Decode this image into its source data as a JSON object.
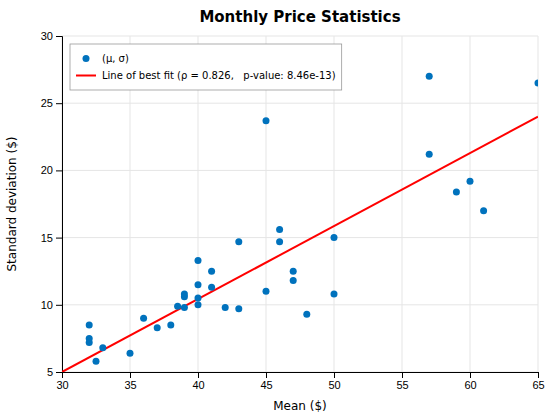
{
  "chart_data": {
    "type": "scatter",
    "title": "Monthly Price Statistics",
    "xlabel": "Mean ($)",
    "ylabel": "Standard deviation ($)",
    "xlim": [
      30,
      65
    ],
    "ylim": [
      5,
      30
    ],
    "xticks": [
      30,
      35,
      40,
      45,
      50,
      55,
      60,
      65
    ],
    "yticks": [
      5,
      10,
      15,
      20,
      25,
      30
    ],
    "grid": true,
    "legend": "upper left",
    "series": [
      {
        "name": "(μ, σ)",
        "type": "scatter",
        "color": "#0072BD",
        "x": [
          32,
          32,
          32,
          32.5,
          33,
          35,
          36,
          37,
          38,
          38.5,
          39,
          39,
          39,
          40,
          40,
          40,
          40,
          41,
          41,
          42,
          43,
          43,
          45,
          45,
          46,
          46,
          47,
          47,
          48,
          50,
          50,
          57,
          57,
          59,
          60,
          61,
          65
        ],
        "values": [
          7.5,
          7.2,
          8.5,
          5.8,
          6.8,
          6.4,
          9.0,
          8.3,
          8.5,
          9.9,
          10.6,
          10.8,
          9.8,
          10.0,
          11.5,
          10.5,
          13.3,
          12.5,
          11.3,
          9.8,
          9.7,
          14.7,
          23.7,
          11.0,
          14.7,
          15.6,
          11.8,
          12.5,
          9.3,
          15.0,
          10.8,
          21.2,
          27.0,
          18.4,
          19.2,
          17.0,
          26.5
        ]
      },
      {
        "name": "Line of best fit (ρ = 0.826,   p-value: 8.46e-13)",
        "type": "line",
        "color": "#FF0000",
        "x": [
          30,
          65
        ],
        "values": [
          5.0,
          24.0
        ]
      }
    ]
  }
}
